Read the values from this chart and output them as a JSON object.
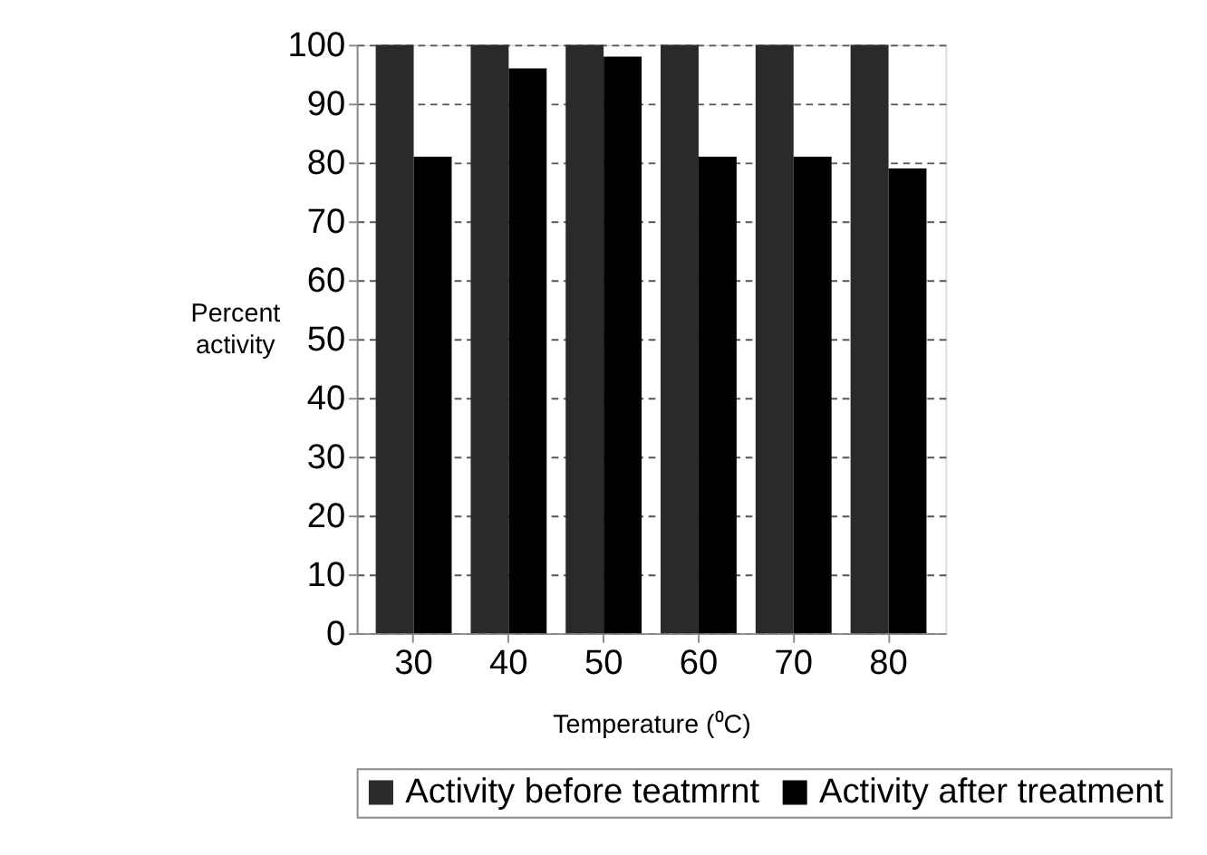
{
  "chart_data": {
    "type": "bar",
    "categories": [
      "30",
      "40",
      "50",
      "60",
      "70",
      "80"
    ],
    "xlabel": "Temperature (⁰C)",
    "ylabel": "Percent activity",
    "series": [
      {
        "name": "Activity before teatmrnt",
        "color": "#2a2a2a",
        "values": [
          100,
          100,
          100,
          100,
          100,
          100
        ]
      },
      {
        "name": "Activity after treatment",
        "color": "#000000",
        "values": [
          81,
          96,
          98,
          81,
          81,
          79
        ]
      }
    ],
    "ylim": [
      0,
      100
    ],
    "yticks": [
      0,
      10,
      20,
      30,
      40,
      50,
      60,
      70,
      80,
      90,
      100
    ],
    "grid": "y",
    "legend": "bottom"
  }
}
